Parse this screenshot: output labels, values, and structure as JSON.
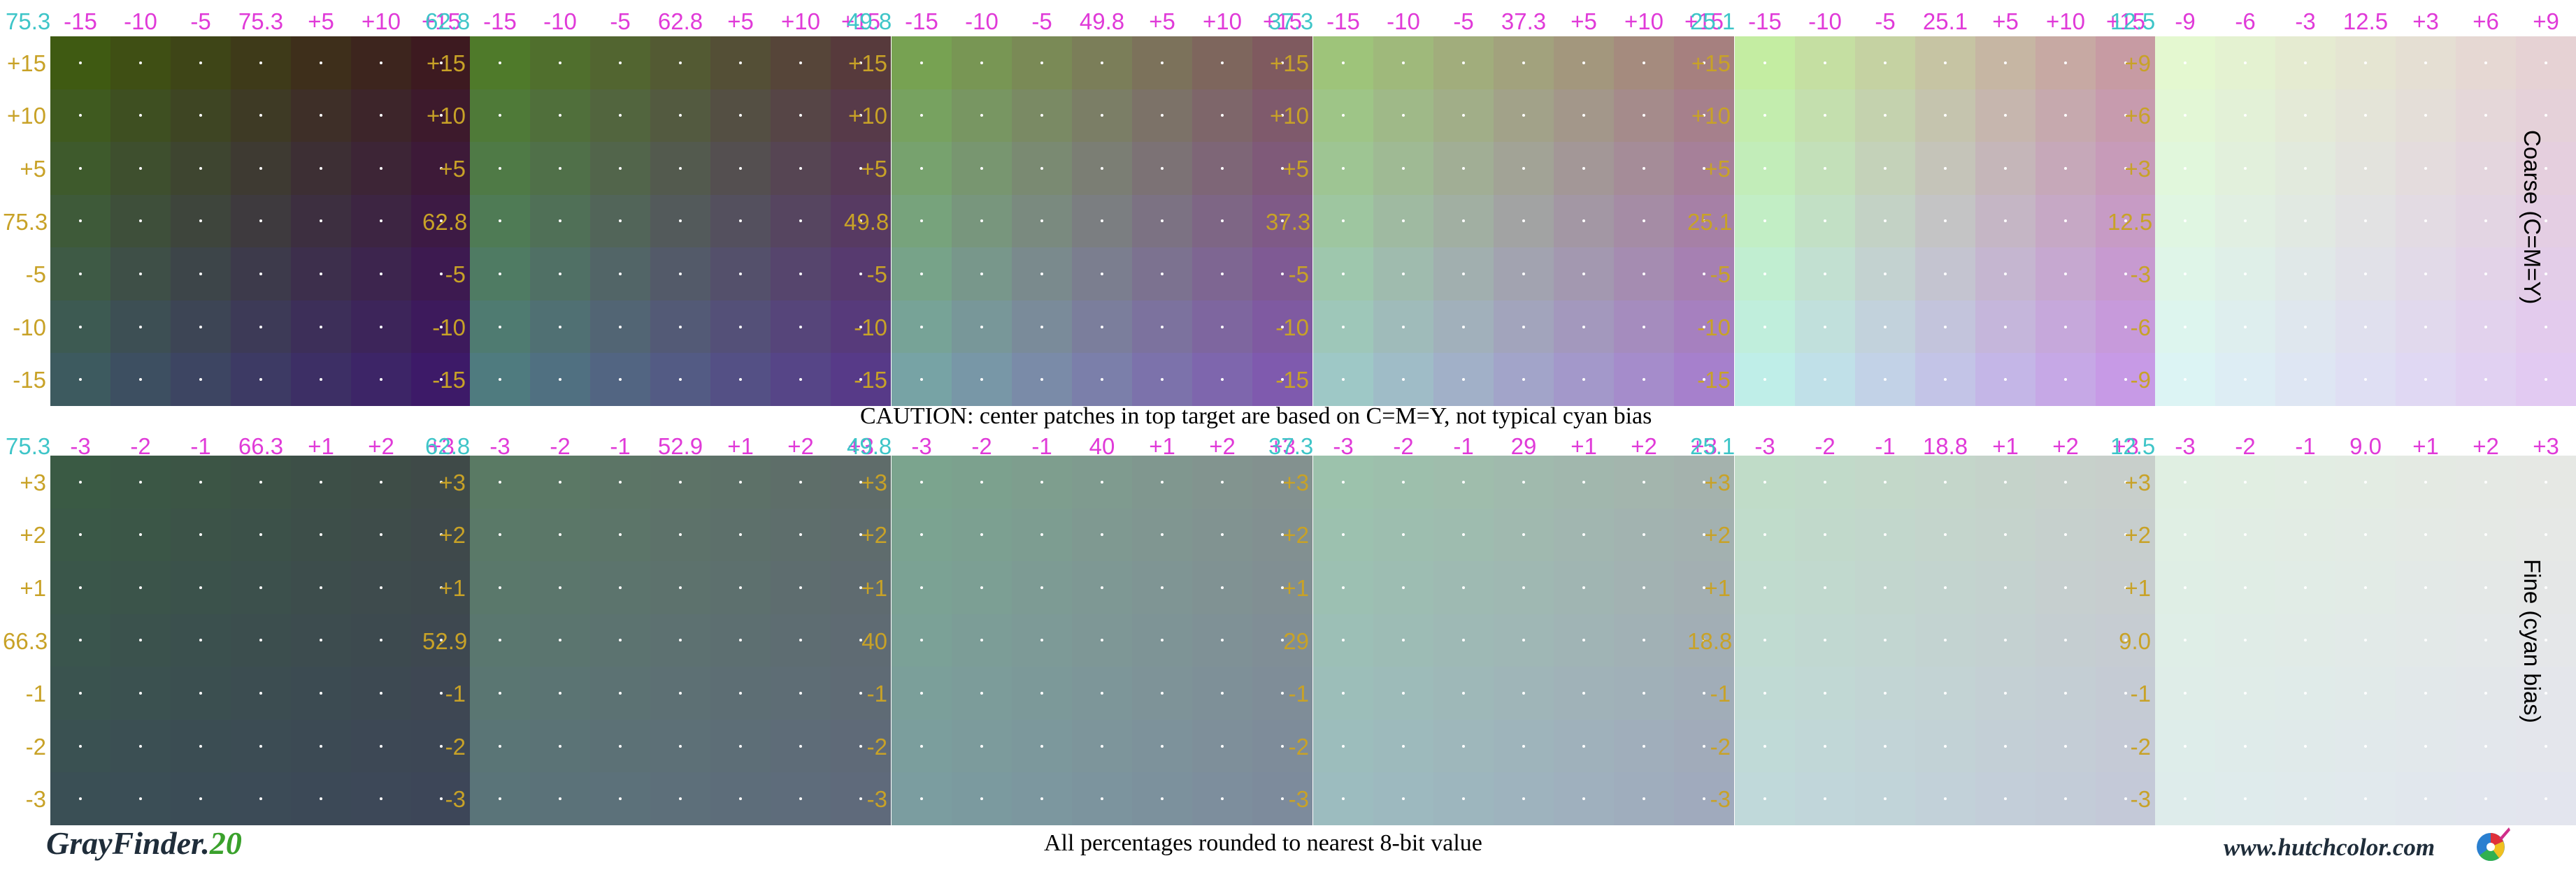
{
  "branding": {
    "app": "GrayFinder.",
    "version": "20",
    "website": "www.hutchcolor.com",
    "logo_icon": "color-wheel-logo-icon"
  },
  "caution": "CAUTION:  center patches in top target are based on C=M=Y, not typical cyan bias",
  "rounding_note": "All percentages rounded to nearest 8-bit value",
  "side_labels": {
    "coarse": "Coarse (C=M=Y)",
    "fine": "Fine (cyan bias)"
  },
  "colors": {
    "label_cyan": "#3ec5c8",
    "label_magenta": "#e03ad8",
    "label_gold": "#c8a227",
    "center_dot": "#ffffff"
  },
  "chart_data": {
    "type": "heatmap",
    "coarse": [
      {
        "cyan": "75.3",
        "top": [
          "-15",
          "-10",
          "-5",
          "75.3",
          "+5",
          "+10",
          "+15"
        ],
        "left": [
          "+15",
          "+10",
          "+5",
          "75.3",
          "-5",
          "-10",
          "-15"
        ],
        "corners": {
          "tl": "#3f5a12",
          "tr": "#3d1a20",
          "bl": "#3d5a5f",
          "br": "#3d1a68"
        }
      },
      {
        "cyan": "62.8",
        "top": [
          "-15",
          "-10",
          "-5",
          "62.8",
          "+5",
          "+10",
          "+15"
        ],
        "left": [
          "+15",
          "+10",
          "+5",
          "62.8",
          "-5",
          "-10",
          "-15"
        ],
        "corners": {
          "tl": "#4f7a2a",
          "tr": "#573a3c",
          "bl": "#4f7b7f",
          "br": "#573a88"
        }
      },
      {
        "cyan": "49.8",
        "top": [
          "-15",
          "-10",
          "-5",
          "49.8",
          "+5",
          "+10",
          "+15"
        ],
        "left": [
          "+15",
          "+10",
          "+5",
          "49.8",
          "-5",
          "-10",
          "-15"
        ],
        "corners": {
          "tl": "#77a252",
          "tr": "#7f5a5f",
          "bl": "#77a3a5",
          "br": "#7f5aae"
        }
      },
      {
        "cyan": "37.3",
        "top": [
          "-15",
          "-10",
          "-5",
          "37.3",
          "+5",
          "+10",
          "+15"
        ],
        "left": [
          "+15",
          "+10",
          "+5",
          "37.3",
          "-5",
          "-10",
          "-15"
        ],
        "corners": {
          "tl": "#9ec47a",
          "tr": "#a6807f",
          "bl": "#9ec8c6",
          "br": "#a680cc"
        }
      },
      {
        "cyan": "25.1",
        "top": [
          "-15",
          "-10",
          "-5",
          "25.1",
          "+5",
          "+10",
          "+15"
        ],
        "left": [
          "+15",
          "+10",
          "+5",
          "25.1",
          "-5",
          "-10",
          "-15"
        ],
        "corners": {
          "tl": "#c4eda2",
          "tr": "#c79ba3",
          "bl": "#bfeee8",
          "br": "#c79ae6"
        }
      },
      {
        "cyan": "12.5",
        "top": [
          "-9",
          "-6",
          "-3",
          "12.5",
          "+3",
          "+6",
          "+9"
        ],
        "left": [
          "+9",
          "+6",
          "+3",
          "12.5",
          "-3",
          "-6",
          "-9"
        ],
        "corners": {
          "tl": "#e4f8d0",
          "tr": "#e6d2d4",
          "bl": "#dcf4f4",
          "br": "#e2caf2"
        }
      }
    ],
    "fine": [
      {
        "cyan": "75.3",
        "top": [
          "-3",
          "-2",
          "-1",
          "66.3",
          "+1",
          "+2",
          "+3"
        ],
        "left": [
          "+3",
          "+2",
          "+1",
          "66.3",
          "-1",
          "-2",
          "-3"
        ],
        "corners": {
          "tl": "#3a5a44",
          "tr": "#3f4a48",
          "bl": "#3a4f55",
          "br": "#3d4658"
        }
      },
      {
        "cyan": "62.8",
        "top": [
          "-3",
          "-2",
          "-1",
          "52.9",
          "+1",
          "+2",
          "+3"
        ],
        "left": [
          "+3",
          "+2",
          "+1",
          "52.9",
          "-1",
          "-2",
          "-3"
        ],
        "corners": {
          "tl": "#5a7a64",
          "tr": "#5f6c6a",
          "bl": "#5a7479",
          "br": "#5f6a7b"
        }
      },
      {
        "cyan": "49.8",
        "top": [
          "-3",
          "-2",
          "-1",
          "40",
          "+1",
          "+2",
          "+3"
        ],
        "left": [
          "+3",
          "+2",
          "+1",
          "40",
          "-1",
          "-2",
          "-3"
        ],
        "corners": {
          "tl": "#7ba48e",
          "tr": "#83918f",
          "bl": "#7b9da0",
          "br": "#7d8b9c"
        }
      },
      {
        "cyan": "37.3",
        "top": [
          "-3",
          "-2",
          "-1",
          "29",
          "+1",
          "+2",
          "+3"
        ],
        "left": [
          "+3",
          "+2",
          "+1",
          "29",
          "-1",
          "-2",
          "-3"
        ],
        "corners": {
          "tl": "#9cc2ac",
          "tr": "#a4b2ad",
          "bl": "#9cbcbf",
          "br": "#a0aabd"
        }
      },
      {
        "cyan": "25.1",
        "top": [
          "-3",
          "-2",
          "-1",
          "18.8",
          "+1",
          "+2",
          "+3"
        ],
        "left": [
          "+3",
          "+2",
          "+1",
          "18.8",
          "-1",
          "-2",
          "-3"
        ],
        "corners": {
          "tl": "#c0dcc8",
          "tr": "#c8cfcb",
          "bl": "#c0d9da",
          "br": "#c4c9d8"
        }
      },
      {
        "cyan": "12.5",
        "top": [
          "-3",
          "-2",
          "-1",
          "9.0",
          "+1",
          "+2",
          "+3"
        ],
        "left": [
          "+3",
          "+2",
          "+1",
          "9.0",
          "-1",
          "-2",
          "-3"
        ],
        "corners": {
          "tl": "#e0efe2",
          "tr": "#e6e8e4",
          "bl": "#deeceb",
          "br": "#e3e5ee"
        }
      }
    ]
  }
}
